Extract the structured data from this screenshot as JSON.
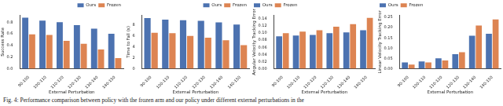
{
  "caption": "Fig. 4: Performance comparison between policy with the frozen arm and our policy under different external perturbations in the",
  "chart_data": [
    {
      "type": "bar",
      "x_label": "External Perturbation",
      "y_label": "Success Rate",
      "categories": [
        "90-100",
        "100-110",
        "110-120",
        "120-130",
        "130-140",
        "140-150"
      ],
      "series": [
        {
          "name": "Ours",
          "color": "#4c72b0",
          "values": [
            0.88,
            0.83,
            0.8,
            0.75,
            0.69,
            0.6
          ]
        },
        {
          "name": "Frozen",
          "color": "#dd8452",
          "values": [
            0.59,
            0.58,
            0.48,
            0.43,
            0.33,
            0.18
          ]
        }
      ],
      "ylim": [
        0,
        0.92
      ],
      "yticks": [
        {
          "value": 0,
          "label": "0.0"
        },
        {
          "value": 0.2,
          "label": "0.2"
        },
        {
          "value": 0.4,
          "label": "0.4"
        },
        {
          "value": 0.6,
          "label": "0.6"
        },
        {
          "value": 0.8,
          "label": "0.8"
        }
      ],
      "grid": false,
      "legend": "upper right"
    },
    {
      "type": "bar",
      "x_label": "External Perturbation",
      "y_label": "Time to Fall (s)",
      "categories": [
        "90-100",
        "100-110",
        "110-120",
        "120-130",
        "130-140",
        "140-150"
      ],
      "series": [
        {
          "name": "Ours",
          "color": "#4c72b0",
          "values": [
            9.3,
            9.0,
            8.9,
            8.8,
            8.5,
            8.1
          ]
        },
        {
          "name": "Frozen",
          "color": "#dd8452",
          "values": [
            6.6,
            6.5,
            6.0,
            5.7,
            5.2,
            4.3
          ]
        }
      ],
      "ylim": [
        0,
        9.8
      ],
      "yticks": [
        0,
        2,
        4,
        6,
        8
      ],
      "grid": false,
      "legend": "upper right"
    },
    {
      "type": "bar",
      "x_label": "External Perturbation",
      "y_label": "Angular Velocity Tracking Error",
      "categories": [
        "90-100",
        "100-110",
        "110-120",
        "120-130",
        "130-140",
        "140-150"
      ],
      "series": [
        {
          "name": "Ours",
          "color": "#4c72b0",
          "values": [
            0.091,
            0.093,
            0.095,
            0.1,
            0.102,
            0.108
          ]
        },
        {
          "name": "Frozen",
          "color": "#dd8452",
          "values": [
            0.1,
            0.104,
            0.108,
            0.118,
            0.125,
            0.143
          ]
        }
      ],
      "ylim": [
        0,
        0.15
      ],
      "yticks": [
        {
          "value": 0,
          "label": "0.00"
        },
        {
          "value": 0.02,
          "label": "0.02"
        },
        {
          "value": 0.04,
          "label": "0.04"
        },
        {
          "value": 0.06,
          "label": "0.06"
        },
        {
          "value": 0.08,
          "label": "0.08"
        },
        {
          "value": 0.1,
          "label": "0.10"
        },
        {
          "value": 0.12,
          "label": "0.12"
        },
        {
          "value": 0.14,
          "label": "0.14"
        }
      ],
      "grid": false,
      "legend": "upper left"
    },
    {
      "type": "bar",
      "x_label": "External Perturbation",
      "y_label": "Linear Velocity Tracking Error",
      "categories": [
        "90-100",
        "100-110",
        "110-120",
        "120-130",
        "130-140",
        "140-150"
      ],
      "series": [
        {
          "name": "Ours",
          "color": "#4c72b0",
          "values": [
            0.03,
            0.035,
            0.05,
            0.07,
            0.16,
            0.17
          ]
        },
        {
          "name": "Frozen",
          "color": "#dd8452",
          "values": [
            0.02,
            0.03,
            0.04,
            0.08,
            0.21,
            0.24
          ]
        }
      ],
      "ylim": [
        0,
        0.26
      ],
      "yticks": [
        {
          "value": 0,
          "label": "0.00"
        },
        {
          "value": 0.05,
          "label": "0.05"
        },
        {
          "value": 0.1,
          "label": "0.10"
        },
        {
          "value": 0.15,
          "label": "0.15"
        },
        {
          "value": 0.2,
          "label": "0.20"
        },
        {
          "value": 0.25,
          "label": "0.25"
        }
      ],
      "grid": false,
      "legend": "upper left"
    }
  ]
}
